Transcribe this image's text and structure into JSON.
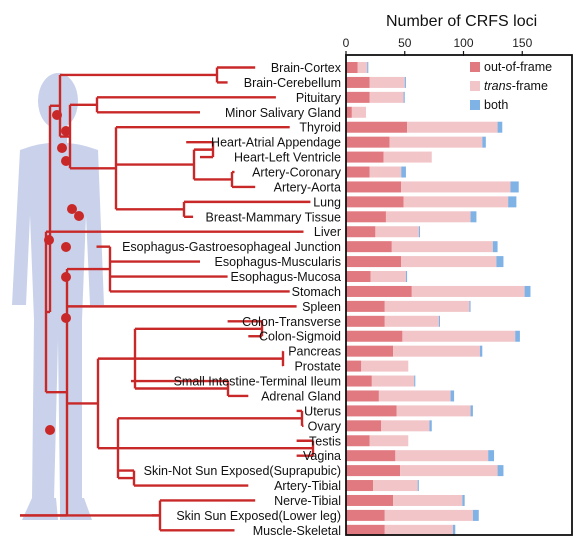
{
  "chart_data": {
    "type": "bar",
    "stacked": true,
    "orientation": "horizontal",
    "title": "Number of CRFS loci",
    "xlim": [
      0,
      172
    ],
    "xticks": [
      0,
      50,
      100,
      150
    ],
    "categories": [
      "Brain-Cortex",
      "Brain-Cerebellum",
      "Pituitary",
      "Minor Salivary Gland",
      "Thyroid",
      "Heart-Atrial Appendage",
      "Heart-Left Ventricle",
      "Artery-Coronary",
      "Artery-Aorta",
      "Lung",
      "Breast-Mammary Tissue",
      "Liver",
      "Esophagus-Gastroesophageal Junction",
      "Esophagus-Muscularis",
      "Esophagus-Mucosa",
      "Stomach",
      "Spleen",
      "Colon-Transverse",
      "Colon-Sigmoid",
      "Pancreas",
      "Prostate",
      "Small Intestine-Terminal Ileum",
      "Adrenal Gland",
      "Uterus",
      "Ovary",
      "Testis",
      "Vagina",
      "Skin-Not Sun Exposed(Suprapubic)",
      "Artery-Tibial",
      "Nerve-Tibial",
      "Skin Sun Exposed(Lower leg)",
      "Muscle-Skeletal"
    ],
    "series": [
      {
        "name": "out-of-frame",
        "color": "#e07a80",
        "values": [
          10,
          20,
          20,
          5,
          52,
          37,
          32,
          20,
          47,
          49,
          34,
          25,
          39,
          47,
          21,
          56,
          33,
          33,
          48,
          40,
          13,
          22,
          28,
          43,
          30,
          20,
          42,
          46,
          23,
          40,
          33,
          33
        ]
      },
      {
        "name": "trans-frame",
        "color": "#f2c5c8",
        "values": [
          8,
          30,
          29,
          12,
          77,
          79,
          41,
          27,
          93,
          89,
          72,
          37,
          86,
          81,
          30,
          96,
          72,
          46,
          96,
          74,
          40,
          36,
          61,
          63,
          41,
          33,
          79,
          83,
          38,
          59,
          75,
          58
        ]
      },
      {
        "name": "both",
        "color": "#7fb3e6",
        "values": [
          1,
          1,
          1,
          0,
          4,
          3,
          0,
          4,
          7,
          7,
          5,
          1,
          4,
          6,
          1,
          5,
          1,
          1,
          4,
          2,
          0,
          1,
          3,
          2,
          2,
          0,
          5,
          5,
          1,
          2,
          5,
          2
        ]
      }
    ],
    "legend": {
      "position": "top-right",
      "labels": [
        "out-of-frame",
        "trans",
        "-frame",
        "both"
      ]
    }
  },
  "colors": {
    "tree": "#c82828",
    "body": "#c9d2ea",
    "frame": "#111111"
  }
}
